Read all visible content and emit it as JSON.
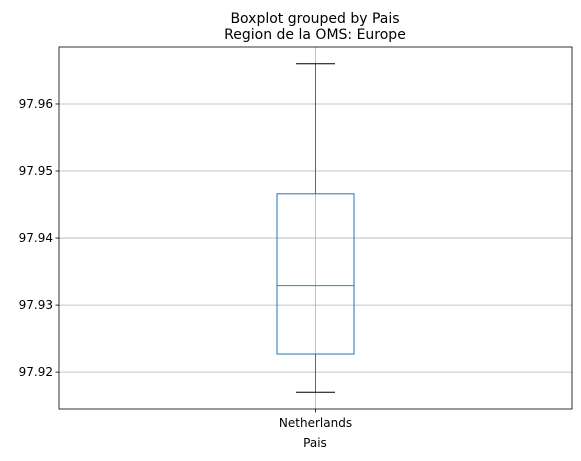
{
  "chart_data": {
    "type": "box",
    "suptitle": "Boxplot grouped by Pais",
    "title": "Region de la OMS: Europe",
    "xlabel": "Pais",
    "ylabel": "",
    "categories": [
      "Netherlands"
    ],
    "boxes": [
      {
        "category": "Netherlands",
        "whisker_low": 97.917,
        "q1": 97.9227,
        "median": 97.9329,
        "q3": 97.9466,
        "whisker_high": 97.966
      }
    ],
    "ylim": [
      97.9145,
      97.9685
    ],
    "yticks": [
      97.92,
      97.93,
      97.94,
      97.95,
      97.96
    ],
    "ytick_labels": [
      "97.92",
      "97.93",
      "97.94",
      "97.95",
      "97.96"
    ],
    "grid": true,
    "colors": {
      "box": "#1f77b4",
      "median": "#2ca02c",
      "whisker": "#1f77b4",
      "cap": "#000000",
      "grid": "#b0b0b0"
    }
  }
}
